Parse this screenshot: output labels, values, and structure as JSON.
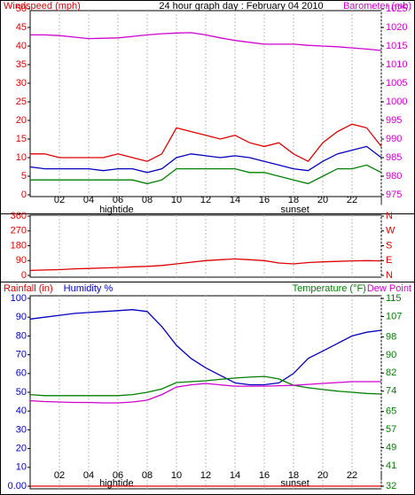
{
  "chart_data": [
    {
      "type": "line",
      "title": "24 hour graph day : February 04 2010",
      "ylabels": [
        {
          "text": "Windspeed (mph)",
          "color": "#e00000"
        }
      ],
      "y2labels": [
        {
          "text": "Barometer (mb)",
          "color": "#d000d0"
        }
      ],
      "ytick_color": "#e00000",
      "y2tick_color": "#d000d0",
      "x": [
        0,
        1,
        2,
        3,
        4,
        5,
        6,
        7,
        8,
        9,
        10,
        11,
        12,
        13,
        14,
        15,
        16,
        17,
        18,
        19,
        20,
        21,
        22,
        23,
        24
      ],
      "xlim": [
        0,
        24
      ],
      "xticks": [
        {
          "value": 2,
          "label": "02"
        },
        {
          "value": 4,
          "label": "04"
        },
        {
          "value": 6,
          "label": "06"
        },
        {
          "value": 8,
          "label": "08"
        },
        10,
        12,
        14,
        16,
        18,
        20,
        22,
        {
          "value": 24,
          "label": "|"
        }
      ],
      "annotations": [
        {
          "text": "hightide",
          "x": 5.9
        },
        {
          "text": "sunset",
          "x": 18.1
        }
      ],
      "ylim": [
        0,
        50
      ],
      "yticks": [
        0,
        5,
        10,
        15,
        20,
        25,
        30,
        35,
        40,
        45,
        50
      ],
      "y2lim": [
        975,
        1025
      ],
      "y2ticks": [
        975,
        980,
        985,
        990,
        995,
        1000,
        1005,
        1010,
        1015,
        1020,
        1025
      ],
      "grid": true,
      "series": [
        {
          "color": "#e00000",
          "values": [
            11,
            11,
            10,
            10,
            10,
            10,
            11,
            10,
            9,
            11,
            18,
            17,
            16,
            15,
            16,
            14,
            13,
            14,
            11,
            9,
            14,
            17,
            19,
            18,
            13
          ]
        },
        {
          "color": "#0000c0",
          "values": [
            7.5,
            7,
            7,
            7,
            7,
            6.5,
            7,
            7,
            6,
            7,
            10,
            11,
            10.5,
            10,
            10.5,
            10,
            9,
            8,
            7,
            6.5,
            9,
            11,
            12,
            13,
            10
          ]
        },
        {
          "color": "#008000",
          "values": [
            4,
            4,
            4,
            4,
            4,
            4,
            4,
            4,
            3,
            4,
            7,
            7,
            7,
            7,
            7,
            6,
            6,
            5,
            4,
            3,
            5,
            7,
            7,
            8,
            6
          ]
        },
        {
          "color": "#d000d0",
          "axis": "y2",
          "values": [
            1018,
            1018,
            1017.8,
            1017.4,
            1017,
            1017.1,
            1017.2,
            1017.6,
            1018,
            1018.3,
            1018.5,
            1018.6,
            1018,
            1017.2,
            1016.5,
            1016,
            1015.5,
            1015.5,
            1015.5,
            1015.2,
            1015,
            1014.8,
            1014.5,
            1014.2,
            1013.8
          ]
        }
      ]
    },
    {
      "type": "line",
      "ytick_color": "#e00000",
      "y2tick_color": "#e00000",
      "x": [
        0,
        1,
        2,
        3,
        4,
        5,
        6,
        7,
        8,
        9,
        10,
        11,
        12,
        13,
        14,
        15,
        16,
        17,
        18,
        19,
        20,
        21,
        22,
        23,
        24
      ],
      "xlim": [
        0,
        24
      ],
      "xticks": [
        {
          "value": 2,
          "label": "02"
        },
        {
          "value": 4,
          "label": "04"
        },
        {
          "value": 6,
          "label": "06"
        },
        {
          "value": 8,
          "label": "08"
        },
        10,
        12,
        14,
        16,
        18,
        20,
        22,
        {
          "value": 24,
          "label": "|"
        }
      ],
      "ylim": [
        0,
        360
      ],
      "yticks": [
        0,
        90,
        180,
        270,
        360
      ],
      "y2lim": [
        0,
        360
      ],
      "y2ticks": [
        {
          "value": 0,
          "label": "N"
        },
        {
          "value": 90,
          "label": "E"
        },
        {
          "value": 180,
          "label": "S"
        },
        {
          "value": 270,
          "label": "W"
        },
        {
          "value": 360,
          "label": "N"
        }
      ],
      "grid": true,
      "series": [
        {
          "color": "#e00000",
          "values": [
            30,
            33,
            35,
            40,
            42,
            45,
            48,
            52,
            55,
            60,
            70,
            80,
            90,
            95,
            100,
            95,
            90,
            75,
            70,
            78,
            82,
            85,
            88,
            90,
            88
          ]
        }
      ]
    },
    {
      "type": "line",
      "ylabels": [
        {
          "text": "Rainfall (in)",
          "color": "#e00000"
        },
        {
          "text": "Humidity %",
          "color": "#0000c0"
        }
      ],
      "y2labels": [
        {
          "text": "Temperature (°F)",
          "color": "#008000"
        },
        {
          "text": "Dew Point",
          "color": "#d000d0"
        }
      ],
      "ytick_color": "#0000c0",
      "y2tick_color": "#008000",
      "x": [
        0,
        1,
        2,
        3,
        4,
        5,
        6,
        7,
        8,
        9,
        10,
        11,
        12,
        13,
        14,
        15,
        16,
        17,
        18,
        19,
        20,
        21,
        22,
        23,
        24
      ],
      "xlim": [
        0,
        24
      ],
      "xticks": [
        {
          "value": 2,
          "label": "02"
        },
        {
          "value": 4,
          "label": "04"
        },
        {
          "value": 6,
          "label": "06"
        },
        {
          "value": 8,
          "label": "08"
        },
        10,
        12,
        14,
        16,
        18,
        20,
        22,
        {
          "value": 24,
          "label": "|"
        }
      ],
      "annotations": [
        {
          "text": "hightide",
          "x": 5.9
        },
        {
          "text": "sunset",
          "x": 18.1
        }
      ],
      "ylim": [
        0,
        100
      ],
      "yticks": [
        {
          "value": 0,
          "label": "0.00"
        },
        10,
        20,
        30,
        40,
        50,
        60,
        70,
        80,
        90,
        100
      ],
      "y2lim": [
        32,
        115
      ],
      "y2ticks": [
        32,
        41,
        49,
        57,
        65,
        74,
        82,
        90,
        98,
        107,
        115
      ],
      "grid": true,
      "series": [
        {
          "color": "#e00000",
          "values": [
            0,
            0,
            0,
            0,
            0,
            0,
            0,
            0,
            0,
            0,
            0,
            0,
            0,
            0,
            0,
            0,
            0,
            0,
            0,
            0,
            0,
            0,
            0,
            0,
            0
          ]
        },
        {
          "color": "#0000c0",
          "values": [
            89,
            90,
            91,
            92,
            92.5,
            93,
            93.5,
            94,
            93,
            85,
            75,
            68,
            63,
            59,
            55,
            54,
            54,
            55,
            60,
            68,
            72,
            76,
            80,
            82,
            83
          ]
        },
        {
          "color": "#008000",
          "axis": "y2",
          "values": [
            72.5,
            72,
            72,
            72,
            72,
            72,
            72,
            72.5,
            73.5,
            75,
            77.8,
            78.2,
            78.6,
            79.2,
            79.8,
            80.2,
            80.5,
            79.4,
            76.6,
            75.5,
            74.7,
            74,
            73.5,
            73,
            72.7
          ]
        },
        {
          "color": "#d000d0",
          "axis": "y2",
          "values": [
            69.8,
            69.4,
            69.2,
            69,
            69,
            68.8,
            68.8,
            69.2,
            70,
            72.5,
            75.8,
            76.8,
            77.4,
            76.8,
            76.2,
            76.2,
            76.2,
            76.4,
            76.6,
            77,
            77.4,
            77.8,
            78.2,
            78.2,
            78.2
          ]
        }
      ]
    }
  ]
}
